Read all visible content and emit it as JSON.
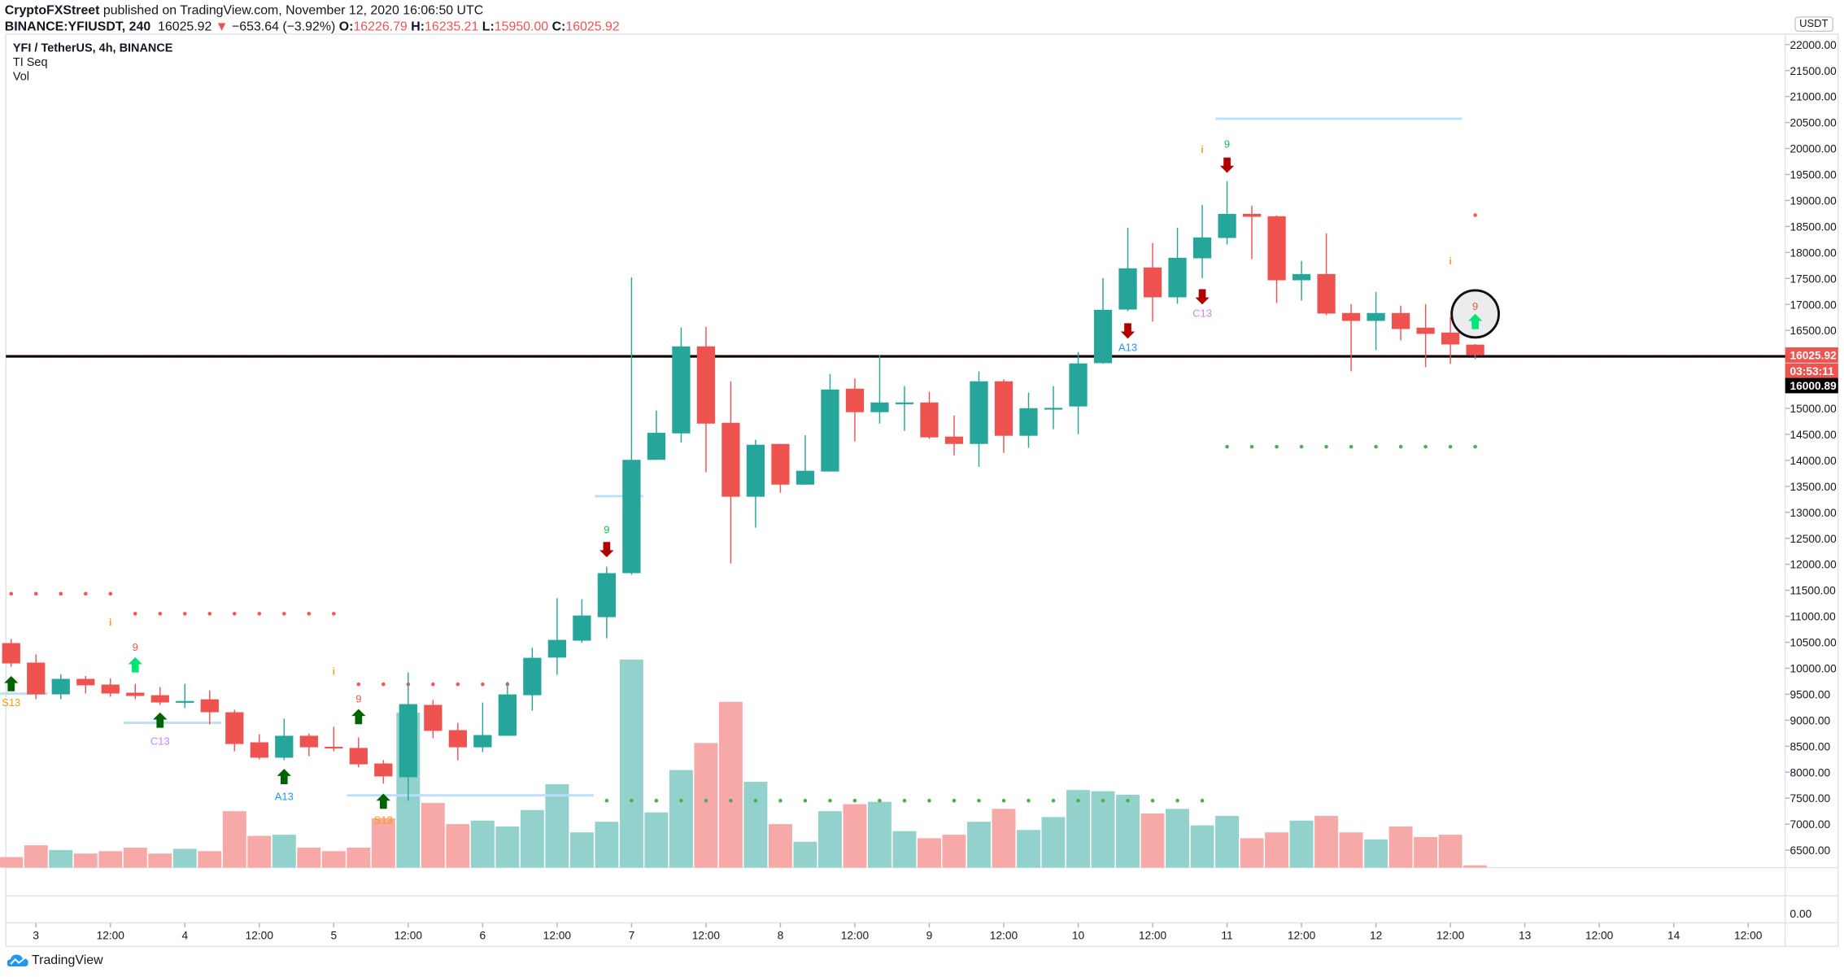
{
  "header": {
    "author": "CryptoFXStreet",
    "published": " published on TradingView.com, November 12, 2020 16:06:50 UTC",
    "symbol": "BINANCE:YFIUSDT, 240",
    "last": "16025.92",
    "change_arrow": "▼",
    "change": "−653.64 (−3.92%)",
    "o_label": "O:",
    "o": "16226.79",
    "h_label": "H:",
    "h": "16235.21",
    "l_label": "L:",
    "l": "15950.00",
    "c_label": "C:",
    "c": "16025.92"
  },
  "legend": {
    "title": "YFI / TetherUS, 4h, BINANCE",
    "indicator1": "TI Seq",
    "indicator2": "Vol"
  },
  "price_axis": {
    "currency_badge": "USDT",
    "labels": [
      "22000.00",
      "21500.00",
      "21000.00",
      "20500.00",
      "20000.00",
      "19500.00",
      "19000.00",
      "18500.00",
      "18000.00",
      "17500.00",
      "17000.00",
      "16500.00",
      "15000.00",
      "14500.00",
      "14000.00",
      "13500.00",
      "13000.00",
      "12500.00",
      "12000.00",
      "11500.00",
      "11000.00",
      "10500.00",
      "10000.00",
      "9500.00",
      "9000.00",
      "8500.00",
      "8000.00",
      "7500.00",
      "7000.00",
      "6500.00"
    ],
    "last_price_label": "16025.92",
    "countdown_label": "03:53:11",
    "line_label": "16000.89",
    "lower_pane_label": "0.00"
  },
  "time_axis": {
    "labels": [
      "3",
      "12:00",
      "4",
      "12:00",
      "5",
      "12:00",
      "6",
      "12:00",
      "7",
      "12:00",
      "8",
      "12:00",
      "9",
      "12:00",
      "10",
      "12:00",
      "11",
      "12:00",
      "12",
      "12:00",
      "13",
      "12:00",
      "14",
      "12:00"
    ]
  },
  "footer": {
    "brand": "TradingView"
  },
  "colors": {
    "up": "#26a69a",
    "down": "#ef5350",
    "vol_up": "#93d2cc",
    "vol_down": "#f6a9a7",
    "setup_dot_red": "#ff5252",
    "setup_dot_green": "#4caf50",
    "buy_arrow": "#006400",
    "buy_arrow_light": "#00e676",
    "sell_arrow": "#b00000",
    "info": "#ff9800",
    "tdst_line": "#bbdefb",
    "label_s13": "#ff9800",
    "label_c13": "#d57cff",
    "label_a13": "#2196f3",
    "label_9_red": "#ef5350",
    "label_9_green": "#00c853",
    "horizontal_line": "#000000"
  },
  "chart_data": {
    "type": "candlestick",
    "interval": "4h",
    "ylim": [
      6500,
      22000
    ],
    "price_scale": "linear",
    "ohlc": [
      [
        10484,
        10560,
        10030,
        10093
      ],
      [
        10109,
        10265,
        9406,
        9498
      ],
      [
        9498,
        9883,
        9406,
        9796
      ],
      [
        9796,
        9851,
        9514,
        9671
      ],
      [
        9686,
        9805,
        9453,
        9514
      ],
      [
        9530,
        9701,
        9406,
        9467
      ],
      [
        9482,
        9639,
        9295,
        9342
      ],
      [
        9342,
        9701,
        9233,
        9370
      ],
      [
        9403,
        9576,
        8920,
        9154
      ],
      [
        9154,
        9202,
        8403,
        8543
      ],
      [
        8575,
        8731,
        8247,
        8279
      ],
      [
        8279,
        9030,
        8231,
        8701
      ],
      [
        8701,
        8747,
        8309,
        8480
      ],
      [
        8490,
        8874,
        8403,
        8460
      ],
      [
        8467,
        8670,
        8092,
        8152
      ],
      [
        8168,
        8231,
        7780,
        7919
      ],
      [
        7904,
        9919,
        7449,
        9310
      ],
      [
        9295,
        9390,
        8655,
        8795
      ],
      [
        8810,
        8950,
        8231,
        8480
      ],
      [
        8480,
        9342,
        8387,
        8715
      ],
      [
        8701,
        9738,
        8701,
        9497
      ],
      [
        9482,
        10394,
        9186,
        10201
      ],
      [
        10205,
        11348,
        9873,
        10546
      ],
      [
        10531,
        11328,
        10491,
        11015
      ],
      [
        10984,
        11955,
        10577,
        11830
      ],
      [
        11830,
        17520,
        11800,
        14010
      ],
      [
        14010,
        14960,
        14010,
        14530
      ],
      [
        14519,
        16553,
        14343,
        16193
      ],
      [
        16193,
        16567,
        13768,
        14707
      ],
      [
        14723,
        15521,
        12015,
        13300
      ],
      [
        13300,
        14397,
        12706,
        14300
      ],
      [
        14316,
        14320,
        13378,
        13533
      ],
      [
        13533,
        14483,
        13533,
        13800
      ],
      [
        13785,
        15662,
        13785,
        15363
      ],
      [
        15379,
        15576,
        14364,
        14927
      ],
      [
        14927,
        16022,
        14707,
        15114
      ],
      [
        15100,
        15427,
        14567,
        15114
      ],
      [
        15114,
        15318,
        14411,
        14442
      ],
      [
        14457,
        14864,
        14096,
        14316
      ],
      [
        14316,
        15711,
        13877,
        15521
      ],
      [
        15521,
        15560,
        14144,
        14473
      ],
      [
        14473,
        15303,
        14239,
        15004
      ],
      [
        15000,
        15427,
        14600,
        15010
      ],
      [
        15037,
        16085,
        14504,
        15865
      ],
      [
        15870,
        17507,
        15860,
        16897
      ],
      [
        16902,
        18477,
        16871,
        17695
      ],
      [
        17711,
        18180,
        16668,
        17137
      ],
      [
        17137,
        18477,
        17012,
        17898
      ],
      [
        17888,
        18915,
        17507,
        18289
      ],
      [
        18279,
        19369,
        18154,
        18743
      ],
      [
        18743,
        18899,
        17872,
        18686
      ],
      [
        18696,
        18710,
        17028,
        17465
      ],
      [
        17465,
        17836,
        17074,
        17585
      ],
      [
        17585,
        18368,
        16793,
        16824
      ],
      [
        16835,
        17007,
        15714,
        16683
      ],
      [
        16683,
        17241,
        16120,
        16835
      ],
      [
        16835,
        16975,
        16308,
        16527
      ],
      [
        16553,
        17007,
        15792,
        16433
      ],
      [
        16459,
        16756,
        15854,
        16230
      ],
      [
        16226.79,
        16235.21,
        15950,
        16025.92
      ]
    ],
    "volume_relative": [
      9,
      19,
      15,
      12,
      14,
      17,
      12,
      16,
      14,
      48,
      27,
      28,
      17,
      14,
      17,
      42,
      132,
      55,
      37,
      40,
      35,
      49,
      71,
      30,
      39,
      177,
      47,
      83,
      106,
      141,
      73,
      37,
      22,
      48,
      54,
      56,
      31,
      25,
      28,
      39,
      50,
      32,
      43,
      66,
      65,
      62,
      46,
      50,
      36,
      44,
      25,
      30,
      40,
      44,
      30,
      24,
      35,
      26,
      28,
      2
    ],
    "horizontal_line_price": 16000.89,
    "last_price": 16025.92,
    "setup_dots": [
      {
        "color": "red",
        "price": 11434,
        "from": 0,
        "to": 4
      },
      {
        "color": "red",
        "price": 11050,
        "from": 5,
        "to": 13
      },
      {
        "color": "red",
        "price": 9692,
        "from": 14,
        "to": 20
      },
      {
        "color": "green",
        "price": 7453,
        "from": 24,
        "to": 48
      },
      {
        "color": "green",
        "price": 14262,
        "from": 49,
        "to": 59
      },
      {
        "color": "red",
        "price": 18718,
        "from": 59,
        "to": 59
      }
    ],
    "tdst_lines": [
      {
        "price": 9512,
        "from": 0,
        "to": 1
      },
      {
        "price": 8950,
        "from": 5,
        "to": 8
      },
      {
        "price": 7555,
        "from": 14,
        "to": 23
      },
      {
        "price": 13311,
        "from": 24,
        "to": 25
      },
      {
        "price": 20573,
        "from": 49,
        "to": 58
      }
    ],
    "signals": [
      {
        "i": 0,
        "arrow": "buy",
        "arrow_price": 9670,
        "label": "S13",
        "label_price": 9353,
        "label_color": "label_s13"
      },
      {
        "i": 5,
        "arrow": "buy_light",
        "arrow_price": 10032,
        "label": "9",
        "label_price": 10416,
        "label_color": "label_9_red"
      },
      {
        "i": 6,
        "arrow": "buy",
        "arrow_price": 8969,
        "label": "C13",
        "label_price": 8607,
        "label_color": "label_c13"
      },
      {
        "i": 11,
        "arrow": "buy",
        "arrow_price": 7883,
        "label": "A13",
        "label_price": 7543,
        "label_color": "label_a13"
      },
      {
        "i": 14,
        "arrow": "buy",
        "arrow_price": 9037,
        "label": "9",
        "label_price": 9421,
        "label_color": "label_9_red"
      },
      {
        "i": 15,
        "arrow": "buy",
        "arrow_price": 7408,
        "label": "S13",
        "label_price": 7091,
        "label_color": "label_s13"
      },
      {
        "i": 24,
        "arrow": "sell",
        "arrow_price": 12316,
        "label": "9",
        "label_price": 12678,
        "label_color": "label_9_green"
      },
      {
        "i": 45,
        "arrow": "sell",
        "arrow_price": 16524,
        "label": "A13",
        "label_price": 16184,
        "label_color": "label_a13"
      },
      {
        "i": 48,
        "arrow": "sell",
        "arrow_price": 17180,
        "label": "C13",
        "label_price": 16840,
        "label_color": "label_c13"
      },
      {
        "i": 49,
        "arrow": "sell",
        "arrow_price": 19713,
        "label": "9",
        "label_price": 20098,
        "label_color": "label_9_green"
      },
      {
        "i": 59,
        "arrow": "buy_light",
        "arrow_price": 16637,
        "label": "9",
        "label_price": 16976,
        "label_color": "label_9_red"
      }
    ],
    "info_markers": [
      {
        "i": 4,
        "price": 10891,
        "label": "i"
      },
      {
        "i": 13,
        "price": 9941,
        "label": "i"
      },
      {
        "i": 48,
        "price": 19984,
        "label": "i"
      },
      {
        "i": 58,
        "price": 17836,
        "label": "i"
      }
    ],
    "highlight_circle": {
      "i": 59,
      "price": 16818
    }
  }
}
